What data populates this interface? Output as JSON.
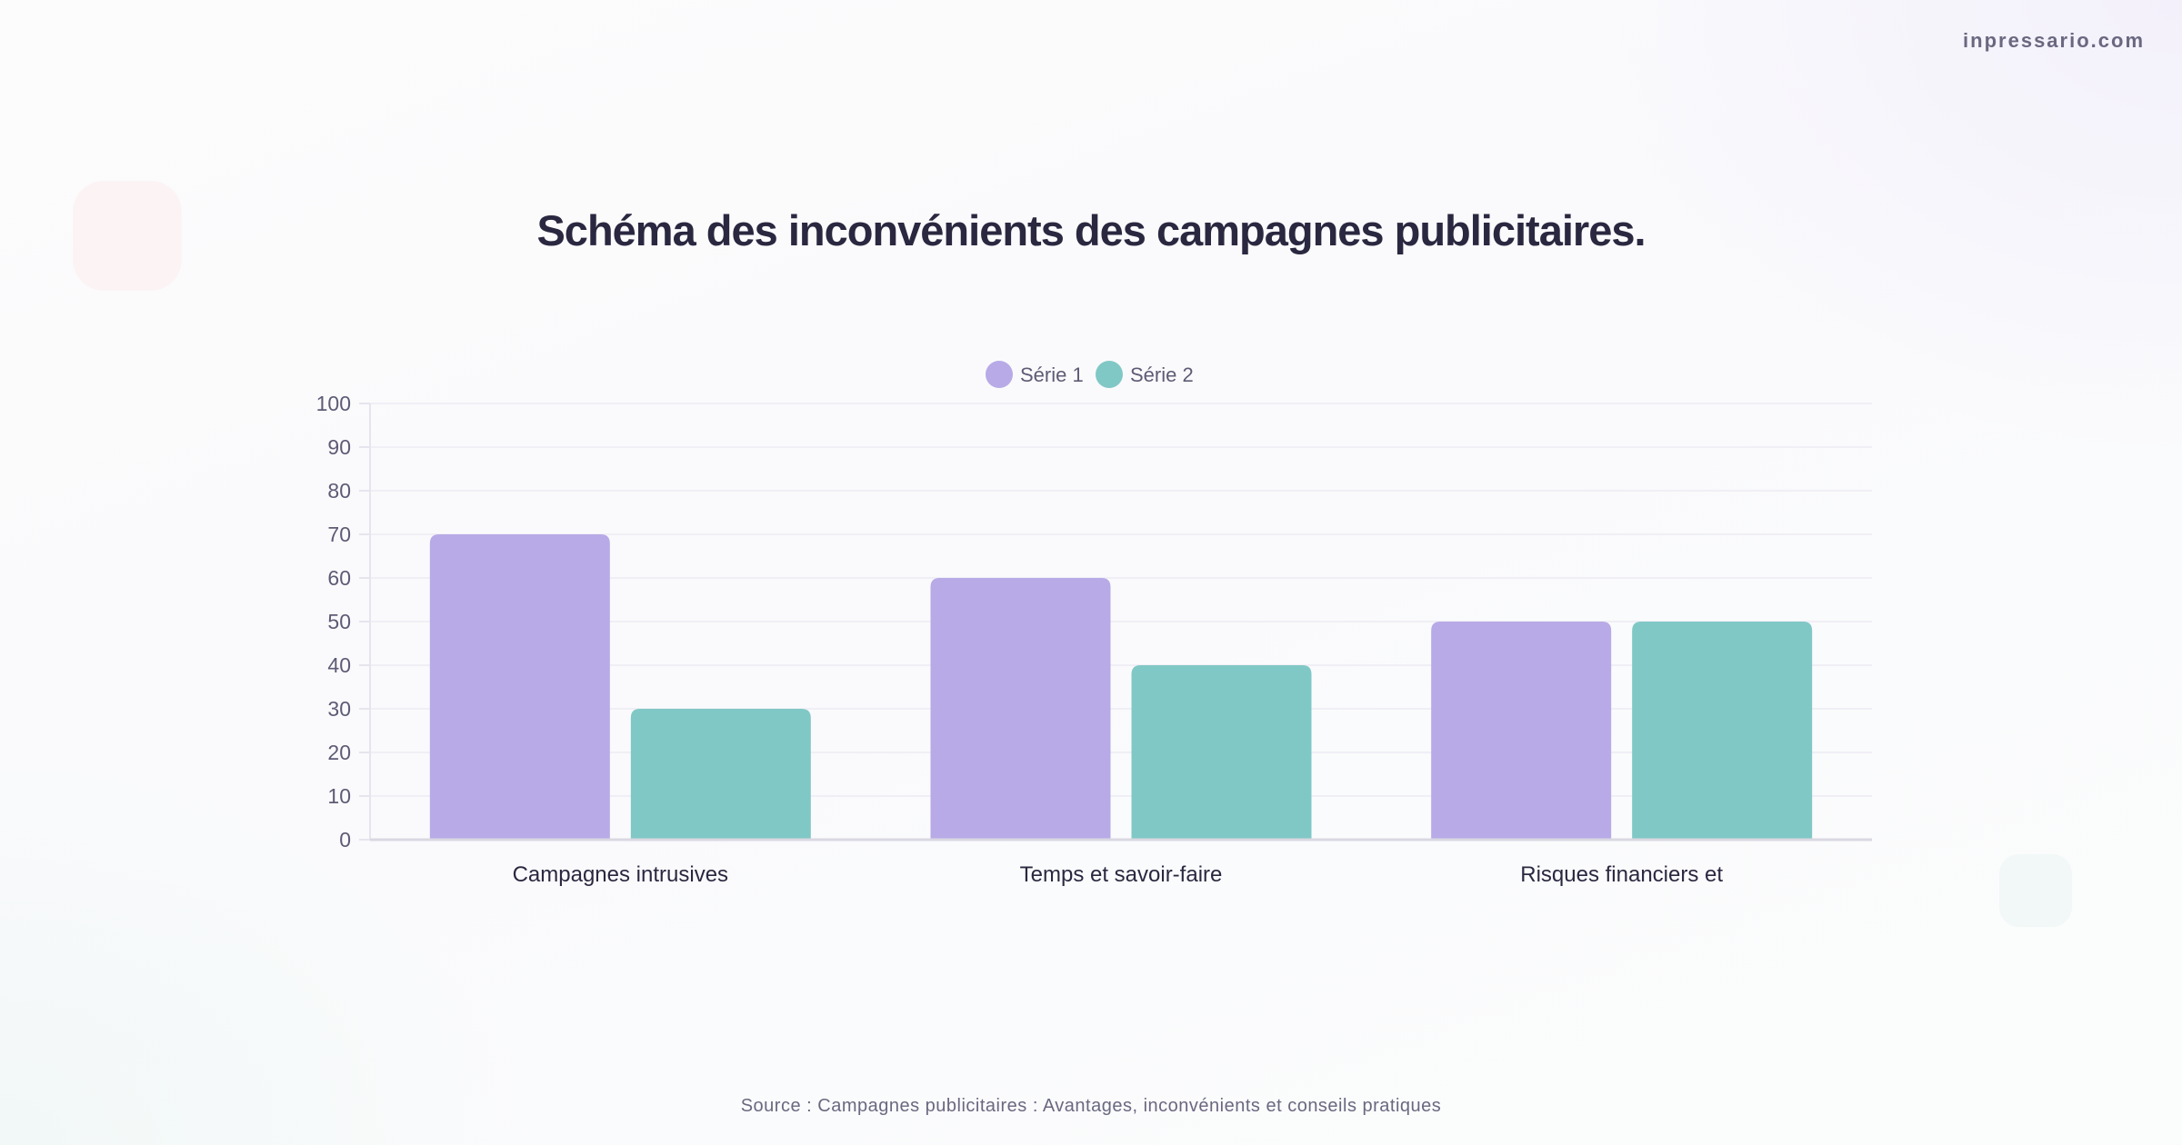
{
  "brand": "inpressario.com",
  "title": "Schéma des inconvénients des campagnes publicitaires.",
  "source": "Source : Campagnes publicitaires : Avantages, inconvénients et conseils pratiques",
  "chart_data": {
    "type": "bar",
    "title": "Schéma des inconvénients des campagnes publicitaires.",
    "categories": [
      "Campagnes intrusives",
      "Temps et savoir-faire",
      "Risques financiers et"
    ],
    "series": [
      {
        "name": "Série 1",
        "values": [
          70,
          60,
          50
        ],
        "color": "#b8aae6"
      },
      {
        "name": "Série 2",
        "values": [
          30,
          40,
          50
        ],
        "color": "#80c8c6"
      }
    ],
    "ylim": [
      0,
      100
    ],
    "yticks": [
      0,
      10,
      20,
      30,
      40,
      50,
      60,
      70,
      80,
      90,
      100
    ],
    "grid": true,
    "legend": "top-center",
    "xlabel": "",
    "ylabel": ""
  }
}
